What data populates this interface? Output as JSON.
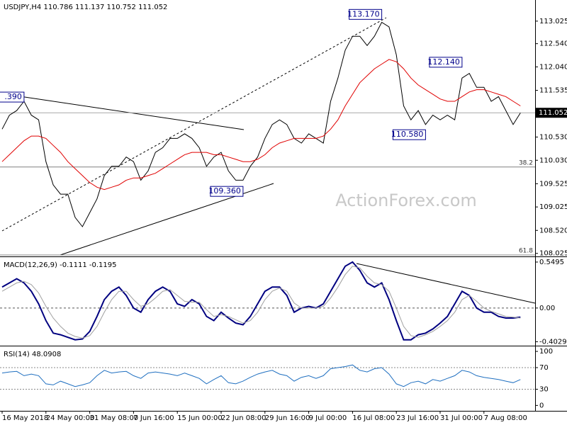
{
  "chart_data": [
    {
      "type": "line",
      "title": "USDJPY,H4  110.786 111.137 110.752 111.052",
      "watermark": "ActionForex.com",
      "ylim": [
        107.96,
        113.48
      ],
      "yticks": [
        113.025,
        {
          "value": 112.54,
          "label": "112.540"
        },
        {
          "value": 112.04,
          "label": "112.040"
        },
        111.535,
        111.035,
        {
          "value": 110.53,
          "label": "110.530"
        },
        {
          "value": 110.03,
          "label": "110.030"
        },
        109.525,
        109.025,
        {
          "value": 108.52,
          "label": "108.520"
        },
        108.025
      ],
      "last_price": 111.052,
      "levels": [
        {
          "value": 109.885,
          "label": "38.2"
        },
        {
          "value": 107.99,
          "label": "61.8"
        }
      ],
      "annotations": [
        {
          "value": 113.17,
          "label": "113.170",
          "index": 52
        },
        {
          "value": 112.14,
          "label": "112.140",
          "index": 63
        },
        {
          "value": 110.58,
          "label": "110.580",
          "index": 58
        },
        {
          "value": 109.36,
          "label": "109.360",
          "index": 33
        },
        {
          "value": 111.39,
          "label": ".390",
          "index": 3
        }
      ],
      "series": [
        {
          "name": "USDJPY",
          "color": "#000000",
          "values": [
            110.7,
            111.0,
            111.1,
            111.3,
            111.0,
            110.9,
            110.0,
            109.5,
            109.3,
            109.3,
            108.8,
            108.6,
            108.9,
            109.2,
            109.7,
            109.9,
            109.9,
            110.1,
            110.0,
            109.6,
            109.8,
            110.2,
            110.3,
            110.5,
            110.5,
            110.6,
            110.5,
            110.3,
            109.9,
            110.1,
            110.2,
            109.8,
            109.6,
            109.6,
            109.9,
            110.1,
            110.5,
            110.8,
            110.9,
            110.8,
            110.5,
            110.4,
            110.6,
            110.5,
            110.4,
            111.3,
            111.8,
            112.4,
            112.7,
            112.7,
            112.5,
            112.7,
            113.0,
            112.9,
            112.3,
            111.2,
            110.9,
            111.1,
            110.8,
            111.0,
            110.9,
            111.0,
            110.9,
            111.8,
            111.9,
            111.6,
            111.6,
            111.3,
            111.4,
            111.1,
            110.8,
            111.05
          ]
        },
        {
          "name": "MA",
          "color": "#e00000",
          "values": [
            110.0,
            110.15,
            110.3,
            110.45,
            110.55,
            110.55,
            110.5,
            110.35,
            110.2,
            110.0,
            109.85,
            109.7,
            109.55,
            109.45,
            109.4,
            109.45,
            109.5,
            109.6,
            109.65,
            109.65,
            109.7,
            109.75,
            109.85,
            109.95,
            110.05,
            110.15,
            110.2,
            110.2,
            110.2,
            110.15,
            110.15,
            110.1,
            110.05,
            110.0,
            110.0,
            110.05,
            110.15,
            110.3,
            110.4,
            110.45,
            110.5,
            110.5,
            110.5,
            110.5,
            110.55,
            110.7,
            110.9,
            111.2,
            111.45,
            111.7,
            111.85,
            112.0,
            112.1,
            112.2,
            112.15,
            112.0,
            111.8,
            111.65,
            111.55,
            111.45,
            111.35,
            111.3,
            111.3,
            111.4,
            111.5,
            111.55,
            111.55,
            111.5,
            111.45,
            111.4,
            111.3,
            111.2
          ]
        }
      ]
    },
    {
      "type": "line",
      "title": "MACD(12,26,9) -0.1111 -0.1195",
      "ylim": [
        -0.45,
        0.6
      ],
      "yticks": [
        0.5495,
        {
          "value": 0,
          "label": "0.00"
        },
        -0.4029
      ],
      "series": [
        {
          "name": "MACD",
          "color": "#000080",
          "values": [
            0.25,
            0.3,
            0.35,
            0.3,
            0.2,
            0.05,
            -0.15,
            -0.3,
            -0.32,
            -0.35,
            -0.38,
            -0.37,
            -0.28,
            -0.1,
            0.1,
            0.2,
            0.25,
            0.15,
            0.0,
            -0.05,
            0.1,
            0.2,
            0.25,
            0.2,
            0.05,
            0.02,
            0.1,
            0.05,
            -0.1,
            -0.15,
            -0.05,
            -0.12,
            -0.18,
            -0.2,
            -0.1,
            0.05,
            0.2,
            0.25,
            0.25,
            0.15,
            -0.05,
            0.0,
            0.02,
            0.0,
            0.05,
            0.2,
            0.35,
            0.5,
            0.55,
            0.45,
            0.3,
            0.25,
            0.3,
            0.1,
            -0.15,
            -0.38,
            -0.38,
            -0.32,
            -0.3,
            -0.25,
            -0.18,
            -0.1,
            0.05,
            0.2,
            0.15,
            0.0,
            -0.05,
            -0.05,
            -0.1,
            -0.12,
            -0.12,
            -0.11
          ]
        },
        {
          "name": "Signal",
          "color": "#a0a0a0",
          "values": [
            0.2,
            0.25,
            0.3,
            0.32,
            0.28,
            0.18,
            0.02,
            -0.12,
            -0.22,
            -0.3,
            -0.34,
            -0.36,
            -0.33,
            -0.22,
            -0.05,
            0.1,
            0.2,
            0.2,
            0.1,
            0.02,
            0.05,
            0.12,
            0.2,
            0.22,
            0.15,
            0.08,
            0.07,
            0.07,
            -0.02,
            -0.1,
            -0.08,
            -0.1,
            -0.14,
            -0.18,
            -0.15,
            -0.05,
            0.1,
            0.2,
            0.24,
            0.2,
            0.06,
            0.0,
            0.0,
            0.0,
            0.02,
            0.12,
            0.25,
            0.4,
            0.5,
            0.48,
            0.38,
            0.3,
            0.28,
            0.2,
            0.0,
            -0.22,
            -0.33,
            -0.35,
            -0.32,
            -0.28,
            -0.22,
            -0.15,
            -0.05,
            0.1,
            0.15,
            0.08,
            0.0,
            -0.04,
            -0.07,
            -0.1,
            -0.11,
            -0.12
          ]
        }
      ]
    },
    {
      "type": "line",
      "title": "RSI(14) 48.0908",
      "ylim": [
        -10,
        108
      ],
      "yticks": [
        100,
        70,
        30,
        0
      ],
      "levels": [
        70,
        30
      ],
      "categories": [
        "16 May 2018",
        null,
        null,
        null,
        null,
        null,
        "24 May 00:00",
        null,
        null,
        null,
        null,
        null,
        "31 May 08:00",
        null,
        null,
        null,
        null,
        null,
        "7 Jun 16:00",
        null,
        null,
        null,
        null,
        null,
        "15 Jun 00:00",
        null,
        null,
        null,
        null,
        null,
        "22 Jun 08:00",
        null,
        null,
        null,
        null,
        null,
        "29 Jun 16:00",
        null,
        null,
        null,
        null,
        null,
        "9 Jul 00:00",
        null,
        null,
        null,
        null,
        null,
        "16 Jul 08:00",
        null,
        null,
        null,
        null,
        null,
        "23 Jul 16:00",
        null,
        null,
        null,
        null,
        null,
        "31 Jul 00:00",
        null,
        null,
        null,
        null,
        null,
        "7 Aug 08:00",
        null,
        null,
        null,
        null,
        null
      ],
      "series": [
        {
          "name": "RSI",
          "color": "#1f6fc0",
          "values": [
            60,
            62,
            63,
            55,
            58,
            55,
            40,
            38,
            45,
            40,
            35,
            38,
            42,
            55,
            65,
            60,
            62,
            63,
            55,
            50,
            60,
            62,
            60,
            58,
            55,
            60,
            55,
            50,
            40,
            48,
            55,
            42,
            40,
            45,
            52,
            58,
            62,
            65,
            58,
            55,
            45,
            52,
            55,
            50,
            55,
            68,
            70,
            72,
            75,
            65,
            62,
            68,
            70,
            58,
            40,
            35,
            42,
            45,
            40,
            48,
            45,
            50,
            55,
            65,
            62,
            55,
            52,
            50,
            48,
            45,
            42,
            48
          ]
        }
      ]
    }
  ]
}
